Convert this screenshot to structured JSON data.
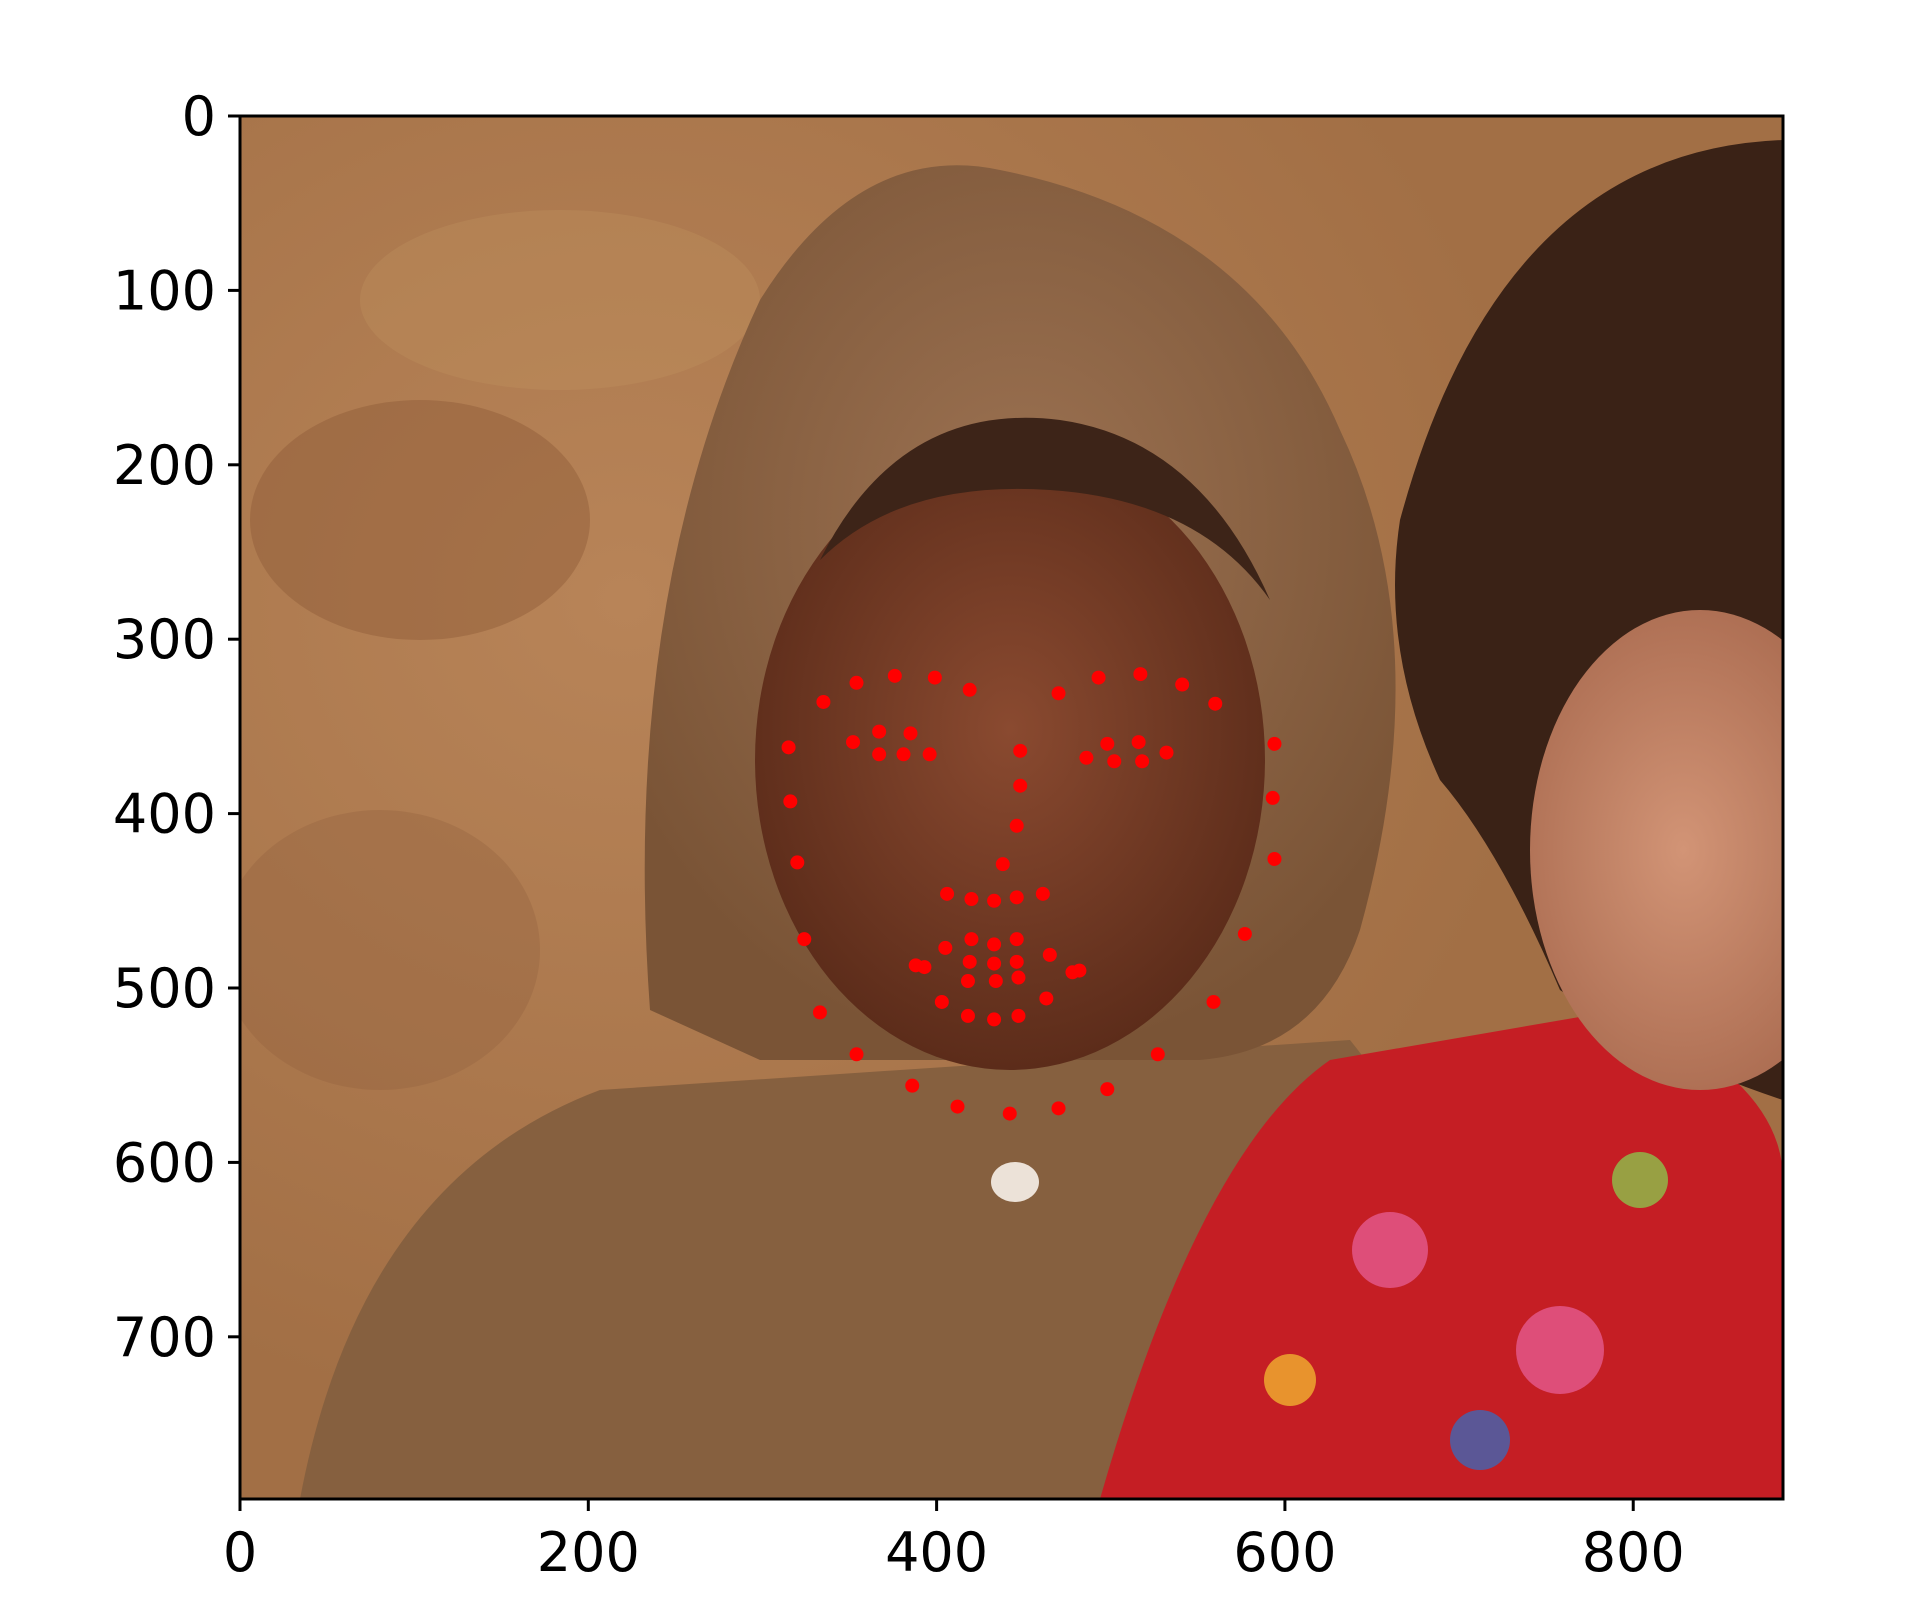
{
  "chart_data": {
    "type": "scatter",
    "title": "",
    "xlabel": "",
    "ylabel": "",
    "image_extent": {
      "width": 886,
      "height": 793
    },
    "xlim": [
      0,
      886
    ],
    "ylim": [
      793,
      0
    ],
    "y_inverted": true,
    "grid": false,
    "legend": "none",
    "xticks": [
      0,
      200,
      400,
      600,
      800
    ],
    "xtick_labels": [
      "0",
      "200",
      "400",
      "600",
      "800"
    ],
    "yticks": [
      0,
      100,
      200,
      300,
      400,
      500,
      600,
      700
    ],
    "ytick_labels": [
      "0",
      "100",
      "200",
      "300",
      "400",
      "500",
      "600",
      "700"
    ],
    "marker_color": "#ff0000",
    "background_image": "photo of a child in a brown fleece hood next to a child in a red floral shirt",
    "series": [
      {
        "points": [
          [
            315,
            362
          ],
          [
            316,
            393
          ],
          [
            320,
            428
          ],
          [
            324,
            472
          ],
          [
            333,
            514
          ],
          [
            354,
            538
          ],
          [
            386,
            556
          ],
          [
            412,
            568
          ],
          [
            442,
            572
          ],
          [
            470,
            569
          ],
          [
            498,
            558
          ],
          [
            527,
            538
          ],
          [
            559,
            508
          ],
          [
            577,
            469
          ],
          [
            594,
            426
          ],
          [
            593,
            391
          ],
          [
            594,
            360
          ],
          [
            335,
            336
          ],
          [
            354,
            325
          ],
          [
            376,
            321
          ],
          [
            399,
            322
          ],
          [
            419,
            329
          ],
          [
            470,
            331
          ],
          [
            493,
            322
          ],
          [
            517,
            320
          ],
          [
            541,
            326
          ],
          [
            560,
            337
          ],
          [
            448,
            364
          ],
          [
            448,
            384
          ],
          [
            446,
            407
          ],
          [
            438,
            429
          ],
          [
            406,
            446
          ],
          [
            420,
            449
          ],
          [
            433,
            450
          ],
          [
            446,
            448
          ],
          [
            461,
            446
          ],
          [
            352,
            359
          ],
          [
            367,
            353
          ],
          [
            385,
            354
          ],
          [
            396,
            366
          ],
          [
            381,
            366
          ],
          [
            367,
            366
          ],
          [
            486,
            368
          ],
          [
            498,
            360
          ],
          [
            516,
            359
          ],
          [
            532,
            365
          ],
          [
            518,
            370
          ],
          [
            502,
            370
          ],
          [
            388,
            487
          ],
          [
            405,
            477
          ],
          [
            420,
            472
          ],
          [
            433,
            475
          ],
          [
            446,
            472
          ],
          [
            465,
            481
          ],
          [
            482,
            490
          ],
          [
            463,
            506
          ],
          [
            447,
            516
          ],
          [
            433,
            518
          ],
          [
            418,
            516
          ],
          [
            403,
            508
          ],
          [
            393,
            488
          ],
          [
            419,
            485
          ],
          [
            433,
            486
          ],
          [
            446,
            485
          ],
          [
            478,
            491
          ],
          [
            447,
            494
          ],
          [
            434,
            496
          ],
          [
            418,
            496
          ]
        ]
      }
    ]
  }
}
